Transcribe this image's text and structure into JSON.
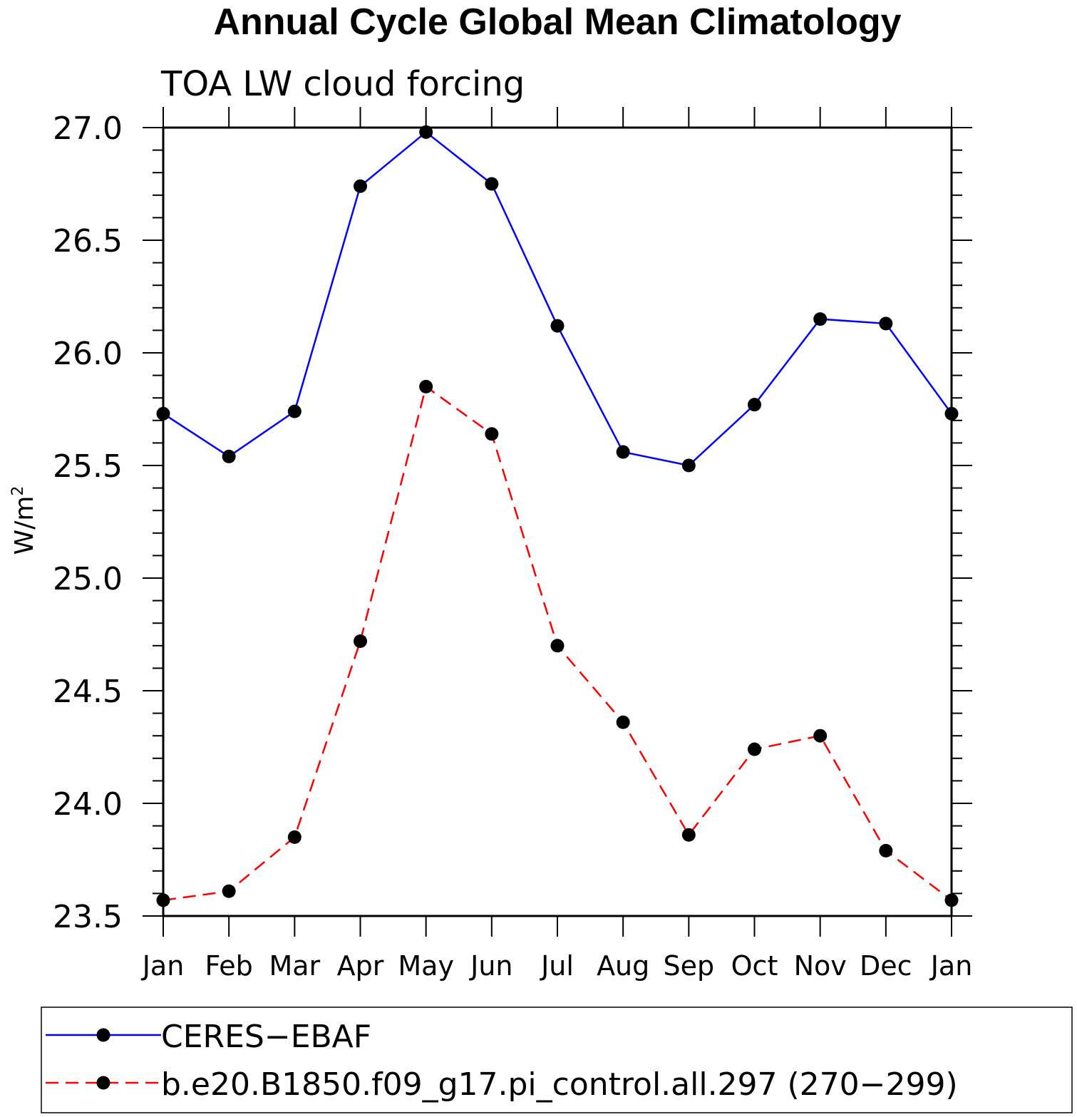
{
  "chart_data": {
    "type": "line",
    "title": "Annual Cycle Global Mean Climatology",
    "subtitle": "TOA LW cloud forcing",
    "xlabel": "",
    "ylabel": "W/m",
    "ylabel_superscript": "2",
    "categories": [
      "Jan",
      "Feb",
      "Mar",
      "Apr",
      "May",
      "Jun",
      "Jul",
      "Aug",
      "Sep",
      "Oct",
      "Nov",
      "Dec",
      "Jan"
    ],
    "ylim": [
      23.5,
      27.0
    ],
    "y_ticks": [
      "23.5",
      "24.0",
      "24.5",
      "25.0",
      "25.5",
      "26.0",
      "26.5",
      "27.0"
    ],
    "grid": false,
    "legend_position": "bottom",
    "series": [
      {
        "name": "CERES−EBAF",
        "color": "#0000ff",
        "dash": "solid",
        "marker": "filled-circle",
        "values": [
          25.73,
          25.54,
          25.74,
          26.74,
          26.98,
          26.75,
          26.12,
          25.56,
          25.5,
          25.77,
          26.15,
          26.13,
          25.73
        ]
      },
      {
        "name": "b.e20.B1850.f09_g17.pi_control.all.297 (270−299)",
        "color": "#ff0000",
        "dash": "dashed",
        "marker": "filled-circle",
        "values": [
          23.57,
          23.61,
          23.85,
          24.72,
          25.85,
          25.64,
          24.7,
          24.36,
          23.86,
          24.24,
          24.3,
          23.79,
          23.57
        ]
      }
    ]
  }
}
